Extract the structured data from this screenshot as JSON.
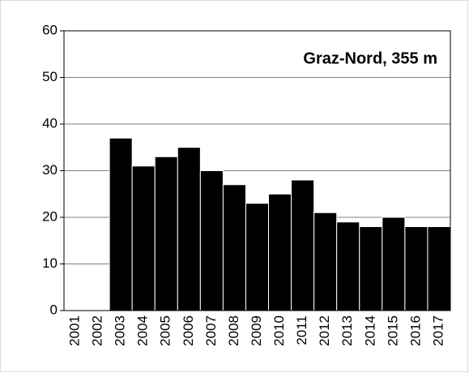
{
  "chart_data": {
    "type": "bar",
    "title": "Graz-Nord, 355 m",
    "categories": [
      "2001",
      "2002",
      "2003",
      "2004",
      "2005",
      "2006",
      "2007",
      "2008",
      "2009",
      "2010",
      "2011",
      "2012",
      "2013",
      "2014",
      "2015",
      "2016",
      "2017"
    ],
    "values": [
      0,
      0,
      37,
      31,
      33,
      35,
      30,
      27,
      23,
      25,
      28,
      21,
      19,
      18,
      20,
      18,
      18
    ],
    "color": "#000000",
    "ylim": [
      0,
      60
    ],
    "yticks": [
      0,
      10,
      20,
      30,
      40,
      50,
      60
    ],
    "grid": true
  }
}
